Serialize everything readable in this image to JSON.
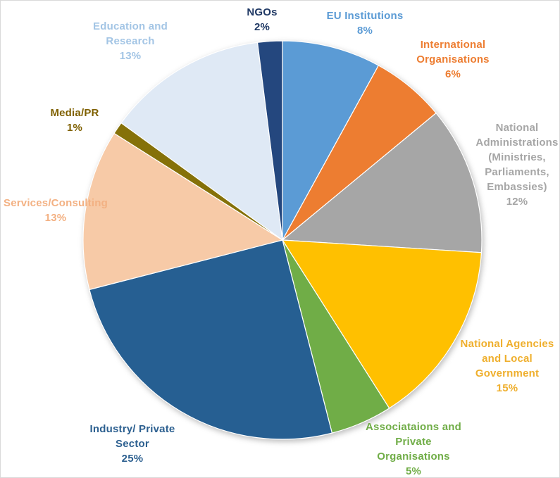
{
  "figure": {
    "background": "#FFFFFF",
    "border_color": "#D9D9D9"
  },
  "chart_data": {
    "type": "pie",
    "title": "",
    "start_angle_deg": 0,
    "direction": "clockwise",
    "total": 100,
    "legend_position": "none",
    "labels_style": "outside, colored to match slice",
    "slices": [
      {
        "slug": "eu-institutions",
        "label": "EU Institutions",
        "label_lines": [
          "EU Institutions"
        ],
        "pct_label": "8%",
        "value": 8,
        "color": "#5B9BD5",
        "label_color": "#5B9BD5"
      },
      {
        "slug": "international-organisations",
        "label": "International Organisations",
        "label_lines": [
          "International",
          "Organisations"
        ],
        "pct_label": "6%",
        "value": 6,
        "color": "#ED7D31",
        "label_color": "#ED7D31"
      },
      {
        "slug": "national-administrations",
        "label": "National Administrations (Ministries, Parliaments, Embassies)",
        "label_lines": [
          "National",
          "Administrations",
          "(Ministries,",
          "Parliaments,",
          "Embassies)"
        ],
        "pct_label": "12%",
        "value": 12,
        "color": "#A6A6A6",
        "label_color": "#A6A6A6"
      },
      {
        "slug": "national-agencies",
        "label": "National Agencies and Local Government",
        "label_lines": [
          "National Agencies",
          "and Local",
          "Government"
        ],
        "pct_label": "15%",
        "value": 15,
        "color": "#FFC000",
        "label_color": "#EFAF2D"
      },
      {
        "slug": "associations-private-orgs",
        "label": "Associataions and Private Organisations",
        "label_lines": [
          "Associataions and",
          "Private",
          "Organisations"
        ],
        "pct_label": "5%",
        "value": 5,
        "color": "#70AD47",
        "label_color": "#70AD47"
      },
      {
        "slug": "industry-private-sector",
        "label": "Industry/ Private Sector",
        "label_lines": [
          "Industry/ Private",
          "Sector"
        ],
        "pct_label": "25%",
        "value": 25,
        "color": "#265F92",
        "label_color": "#2D6090"
      },
      {
        "slug": "services-consulting",
        "label": "Services/Consulting",
        "label_lines": [
          "Services/Consulting"
        ],
        "pct_label": "13%",
        "value": 13,
        "color": "#F7CAA7",
        "label_color": "#F3B183"
      },
      {
        "slug": "media-pr",
        "label": "Media/PR",
        "label_lines": [
          "Media/PR"
        ],
        "pct_label": "1%",
        "value": 1,
        "color": "#857109",
        "label_color": "#7F6000"
      },
      {
        "slug": "education-research",
        "label": "Education and Research",
        "label_lines": [
          "Education and",
          "Research"
        ],
        "pct_label": "13%",
        "value": 13,
        "color": "#DFE9F5",
        "label_color": "#A3C5E5"
      },
      {
        "slug": "ngos",
        "label": "NGOs",
        "label_lines": [
          "NGOs"
        ],
        "pct_label": "2%",
        "value": 2,
        "color": "#24477E",
        "label_color": "#1F3864"
      }
    ]
  }
}
